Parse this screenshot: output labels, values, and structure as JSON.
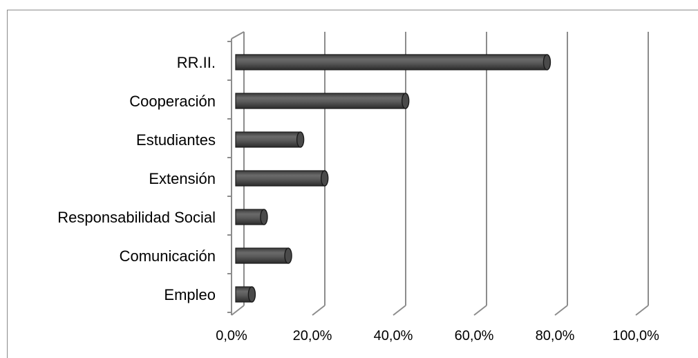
{
  "chart_data": {
    "type": "bar",
    "orientation": "horizontal",
    "style": "3d-cylinder",
    "categories": [
      "RR.II.",
      "Cooperación",
      "Estudiantes",
      "Extensión",
      "Responsabilidad Social",
      "Comunicación",
      "Empleo"
    ],
    "values": [
      77.0,
      42.0,
      16.0,
      22.0,
      7.0,
      13.0,
      4.0
    ],
    "xlim": [
      0,
      100
    ],
    "x_ticks": [
      "0,0%",
      "20,0%",
      "40,0%",
      "60,0%",
      "80,0%",
      "100,0%"
    ],
    "grid": true,
    "legend": "none",
    "bar_color": "#555555",
    "grid_color": "#8c8c8c"
  }
}
